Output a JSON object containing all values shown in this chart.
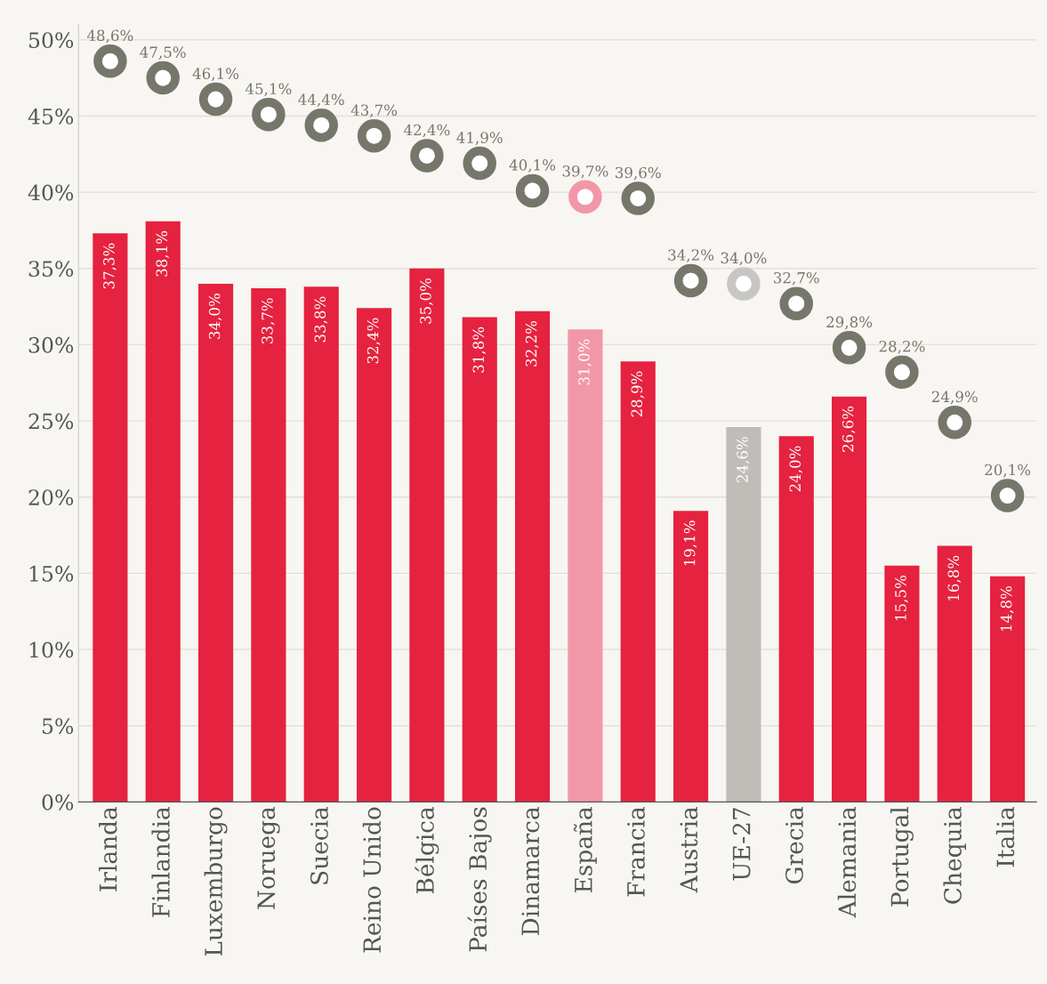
{
  "chart_data": {
    "type": "bar",
    "categories": [
      "Irlanda",
      "Finlandia",
      "Luxemburgo",
      "Noruega",
      "Suecia",
      "Reino Unido",
      "Bélgica",
      "Países Bajos",
      "Dinamarca",
      "España",
      "Francia",
      "Austria",
      "UE-27",
      "Grecia",
      "Alemania",
      "Portugal",
      "Chequia",
      "Italia"
    ],
    "series": [
      {
        "colors": [
          "#e5223f",
          "#e5223f",
          "#e5223f",
          "#e5223f",
          "#e5223f",
          "#e5223f",
          "#e5223f",
          "#e5223f",
          "#e5223f",
          "#f297a8",
          "#e5223f",
          "#e5223f",
          "#c0bdb8",
          "#e5223f",
          "#e5223f",
          "#e5223f",
          "#e5223f",
          "#e5223f"
        ],
        "values": [
          37.3,
          38.1,
          34.0,
          33.7,
          33.8,
          32.4,
          35.0,
          31.8,
          32.2,
          31.0,
          28.9,
          19.1,
          24.6,
          24.0,
          26.6,
          15.5,
          16.8,
          14.8
        ],
        "value_labels": [
          "37,3%",
          "38,1%",
          "34,0%",
          "33,7%",
          "33,8%",
          "32,4%",
          "35,0%",
          "31,8%",
          "32,2%",
          "31,0%",
          "28,9%",
          "19,1%",
          "24,6%",
          "24,0%",
          "26,6%",
          "15,5%",
          "16,8%",
          "14,8%"
        ]
      },
      {
        "type": "scatter",
        "colors": [
          "#77766a",
          "#77766a",
          "#77766a",
          "#77766a",
          "#77766a",
          "#77766a",
          "#77766a",
          "#77766a",
          "#77766a",
          "#f297a8",
          "#77766a",
          "#77766a",
          "#c8c6c2",
          "#77766a",
          "#77766a",
          "#77766a",
          "#77766a",
          "#77766a"
        ],
        "values": [
          48.6,
          47.5,
          46.1,
          45.1,
          44.4,
          43.7,
          42.4,
          41.9,
          40.1,
          39.7,
          39.6,
          34.2,
          34.0,
          32.7,
          29.8,
          28.2,
          24.9,
          20.1
        ],
        "value_labels": [
          "48,6%",
          "47,5%",
          "46,1%",
          "45,1%",
          "44,4%",
          "43,7%",
          "42,4%",
          "41,9%",
          "40,1%",
          "39,7%",
          "39,6%",
          "34,2%",
          "34,0%",
          "32,7%",
          "29,8%",
          "28,2%",
          "24,9%",
          "20,1%"
        ]
      }
    ],
    "ylim": [
      0,
      51
    ],
    "yticks": [
      {
        "value": 0,
        "label": "0%"
      },
      {
        "value": 5,
        "label": "5%"
      },
      {
        "value": 10,
        "label": "10%"
      },
      {
        "value": 15,
        "label": "15%"
      },
      {
        "value": 20,
        "label": "20%"
      },
      {
        "value": 25,
        "label": "25%"
      },
      {
        "value": 30,
        "label": "30%"
      },
      {
        "value": 35,
        "label": "35%"
      },
      {
        "value": 40,
        "label": "40%"
      },
      {
        "value": 45,
        "label": "45%"
      },
      {
        "value": 50,
        "label": "50%"
      }
    ],
    "grid": "y",
    "marker": "circle"
  }
}
